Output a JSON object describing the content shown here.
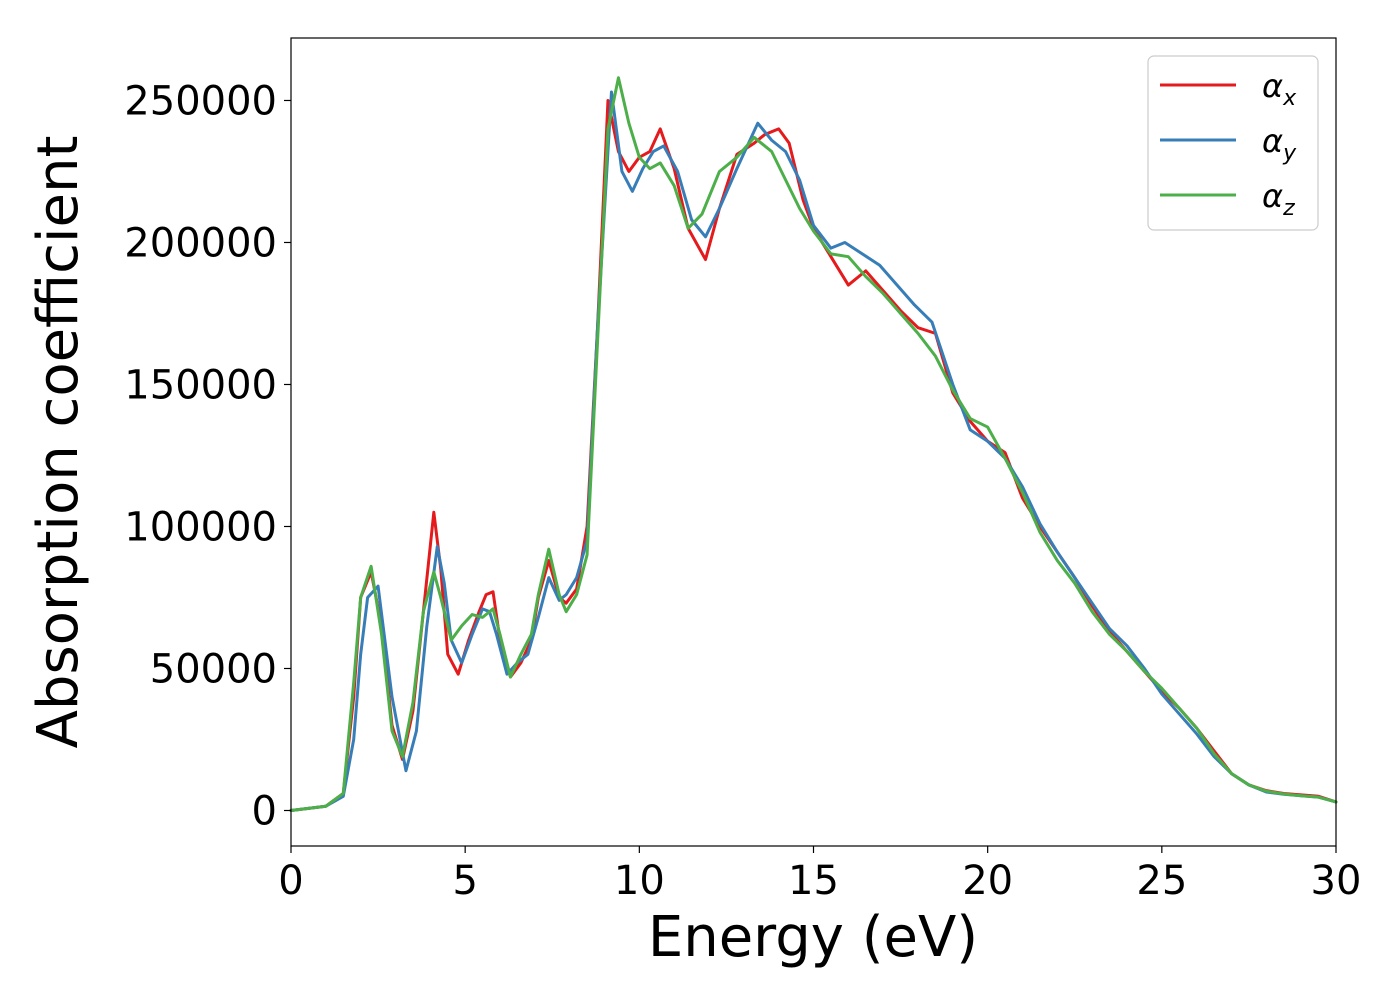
{
  "chart_data": {
    "type": "line",
    "title": "",
    "xlabel": "Energy (eV)",
    "ylabel": "Absorption coefficient",
    "xlim": [
      0,
      30
    ],
    "ylim": [
      -12500,
      272000
    ],
    "xticks": [
      0,
      5,
      10,
      15,
      20,
      25,
      30
    ],
    "yticks": [
      0,
      50000,
      100000,
      150000,
      200000,
      250000
    ],
    "grid": false,
    "legend": "top-right",
    "series": [
      {
        "name": "α",
        "subscript": "x",
        "color": "#e41a1c",
        "x": [
          0,
          1,
          1.5,
          1.8,
          2.0,
          2.3,
          2.6,
          2.9,
          3.2,
          3.5,
          3.8,
          4.1,
          4.3,
          4.5,
          4.8,
          5.1,
          5.4,
          5.6,
          5.8,
          6.0,
          6.3,
          6.6,
          6.9,
          7.1,
          7.4,
          7.7,
          7.9,
          8.2,
          8.5,
          8.8,
          9.1,
          9.4,
          9.7,
          10.0,
          10.3,
          10.6,
          11.0,
          11.4,
          11.9,
          12.3,
          12.8,
          13.3,
          13.6,
          14.0,
          14.3,
          14.7,
          15.0,
          15.5,
          16.0,
          16.5,
          17.0,
          17.5,
          18.0,
          18.5,
          19.0,
          19.5,
          20.0,
          20.5,
          21.0,
          21.5,
          22.0,
          22.5,
          23.0,
          23.5,
          24.0,
          24.5,
          25.0,
          25.5,
          26.0,
          26.5,
          27.0,
          27.5,
          28.0,
          28.5,
          29.0,
          29.5,
          30.0
        ],
        "y": [
          0,
          1500,
          6000,
          40000,
          75000,
          84000,
          65000,
          30000,
          18000,
          35000,
          70000,
          105000,
          85000,
          55000,
          48000,
          60000,
          70000,
          76000,
          77000,
          60000,
          47000,
          52000,
          60000,
          75000,
          88000,
          75000,
          73000,
          78000,
          100000,
          170000,
          250000,
          232000,
          225000,
          230000,
          232000,
          240000,
          226000,
          205000,
          194000,
          212000,
          231000,
          235000,
          238000,
          240000,
          235000,
          215000,
          205000,
          195000,
          185000,
          190000,
          183000,
          176000,
          170000,
          168000,
          147000,
          137000,
          130000,
          126000,
          110000,
          100000,
          91000,
          82000,
          72000,
          63000,
          56000,
          49000,
          42000,
          36000,
          29000,
          21000,
          13000,
          9000,
          7000,
          6000,
          5500,
          5000,
          3000
        ]
      },
      {
        "name": "α",
        "subscript": "y",
        "color": "#377eb8",
        "x": [
          0,
          1,
          1.5,
          1.8,
          2.0,
          2.2,
          2.5,
          2.9,
          3.3,
          3.6,
          3.9,
          4.2,
          4.4,
          4.6,
          4.9,
          5.2,
          5.5,
          5.7,
          5.9,
          6.2,
          6.5,
          6.8,
          7.1,
          7.4,
          7.7,
          7.9,
          8.2,
          8.5,
          8.8,
          9.2,
          9.5,
          9.8,
          10.1,
          10.4,
          10.7,
          11.1,
          11.5,
          11.9,
          12.3,
          12.8,
          13.4,
          13.8,
          14.2,
          14.6,
          15.0,
          15.5,
          15.9,
          16.4,
          16.9,
          17.4,
          17.9,
          18.4,
          19.0,
          19.5,
          20.0,
          20.5,
          21.0,
          21.5,
          22.0,
          22.5,
          23.0,
          23.5,
          24.0,
          24.5,
          25.0,
          25.5,
          26.0,
          26.5,
          27.0,
          27.5,
          28.0,
          28.5,
          29.0,
          29.5,
          30.0
        ],
        "y": [
          0,
          1500,
          5000,
          25000,
          55000,
          75000,
          79000,
          40000,
          14000,
          28000,
          65000,
          93000,
          80000,
          60000,
          52000,
          62000,
          71000,
          70000,
          62000,
          48000,
          52000,
          55000,
          68000,
          82000,
          74000,
          76000,
          82000,
          95000,
          170000,
          253000,
          225000,
          218000,
          226000,
          232000,
          234000,
          225000,
          208000,
          202000,
          212000,
          226000,
          242000,
          236000,
          232000,
          222000,
          206000,
          198000,
          200000,
          196000,
          192000,
          185000,
          178000,
          172000,
          150000,
          134000,
          130000,
          124000,
          114000,
          101000,
          91000,
          82000,
          73000,
          64000,
          58000,
          50000,
          41000,
          34000,
          27000,
          19000,
          13000,
          9000,
          6500,
          5700,
          5200,
          4700,
          3000
        ]
      },
      {
        "name": "α",
        "subscript": "z",
        "color": "#4daf4a",
        "x": [
          0,
          1,
          1.5,
          1.8,
          2.0,
          2.3,
          2.6,
          2.9,
          3.2,
          3.5,
          3.8,
          4.1,
          4.3,
          4.6,
          4.9,
          5.2,
          5.5,
          5.8,
          6.0,
          6.3,
          6.6,
          6.9,
          7.1,
          7.4,
          7.7,
          7.9,
          8.2,
          8.5,
          8.8,
          9.1,
          9.4,
          9.7,
          10.0,
          10.3,
          10.6,
          11.0,
          11.4,
          11.8,
          12.3,
          12.8,
          13.3,
          13.8,
          14.2,
          14.6,
          15.0,
          15.5,
          16.0,
          16.5,
          17.0,
          17.5,
          18.0,
          18.5,
          19.0,
          19.5,
          20.0,
          20.5,
          21.0,
          21.5,
          22.0,
          22.5,
          23.0,
          23.5,
          24.0,
          24.5,
          25.0,
          25.5,
          26.0,
          26.5,
          27.0,
          27.5,
          28.0,
          28.5,
          29.0,
          29.5,
          30.0
        ],
        "y": [
          0,
          1500,
          6000,
          45000,
          75000,
          86000,
          62000,
          28000,
          19000,
          38000,
          70000,
          84000,
          75000,
          60000,
          65000,
          69000,
          68000,
          71000,
          62000,
          47000,
          55000,
          62000,
          76000,
          92000,
          76000,
          70000,
          76000,
          90000,
          165000,
          240000,
          258000,
          242000,
          230000,
          226000,
          228000,
          220000,
          205000,
          210000,
          225000,
          230000,
          237000,
          232000,
          222000,
          212000,
          204000,
          196000,
          195000,
          188000,
          182000,
          175000,
          168000,
          160000,
          148000,
          138000,
          135000,
          124000,
          112000,
          98000,
          88000,
          80000,
          70000,
          62000,
          56000,
          49000,
          43000,
          36000,
          29000,
          20000,
          13000,
          9000,
          6800,
          5800,
          5200,
          4700,
          3000
        ]
      }
    ]
  }
}
